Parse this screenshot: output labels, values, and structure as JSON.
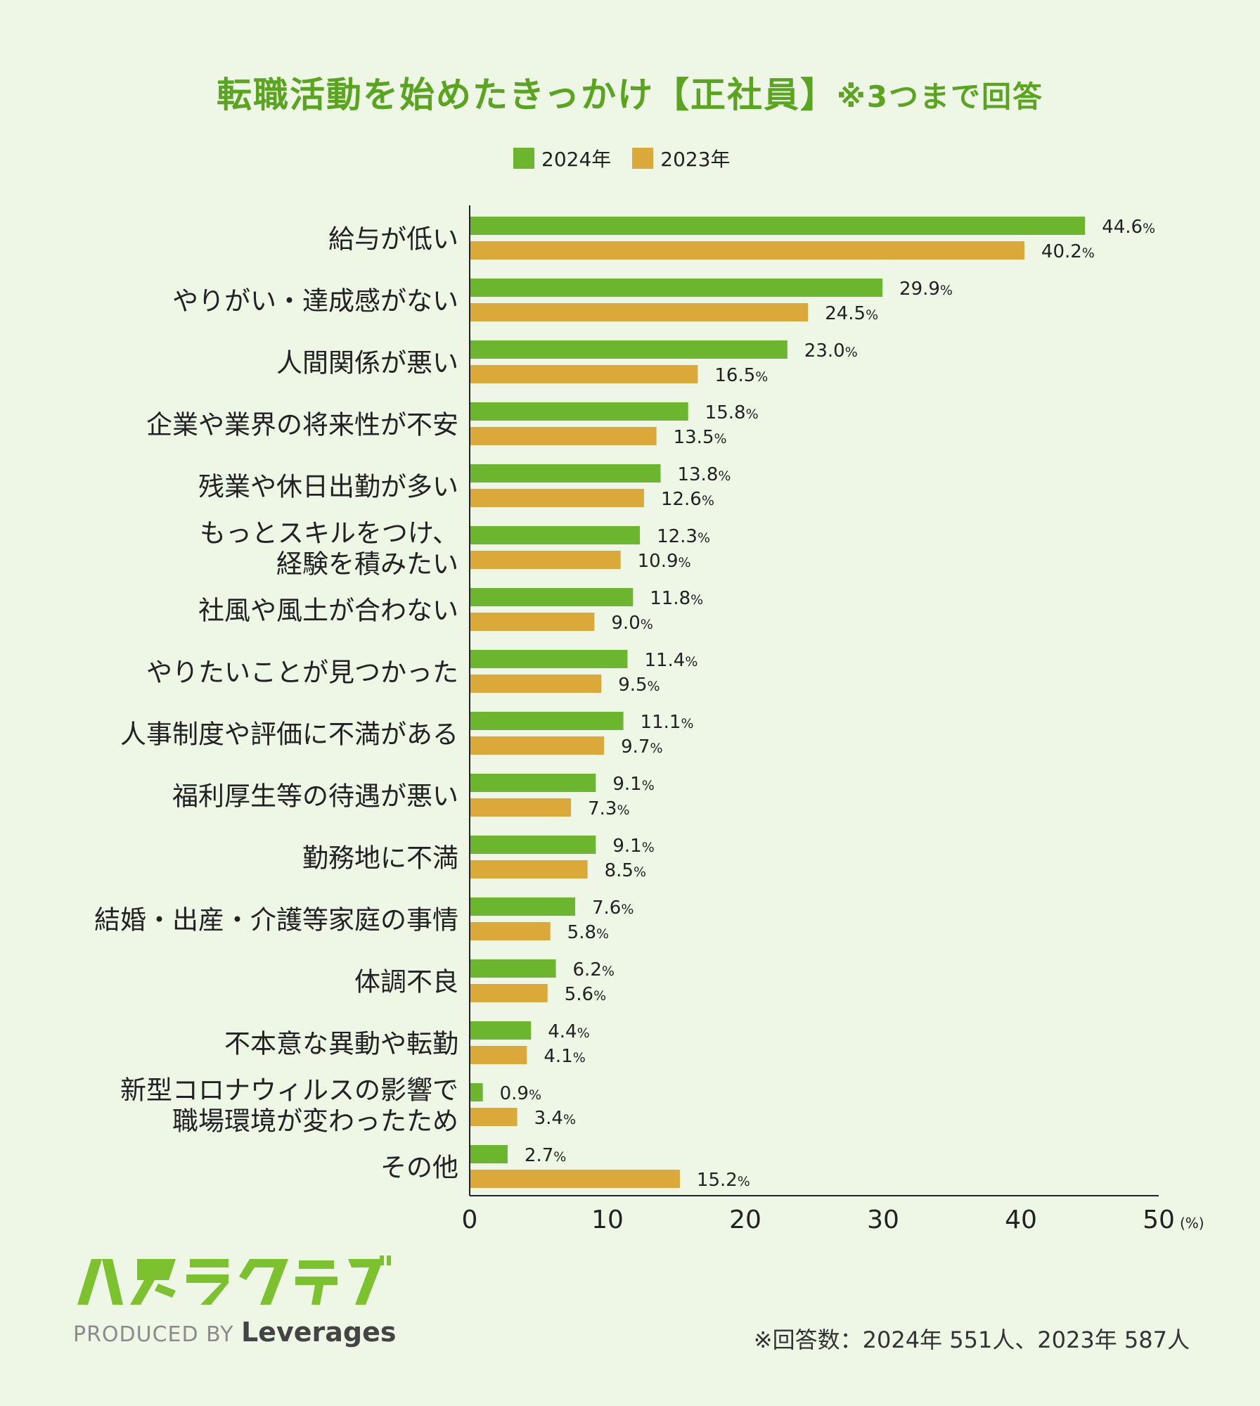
{
  "title": "転職活動を始めたきっかけ【正社員】",
  "subtitle": "※3つまで回答",
  "legend": [
    {
      "label": "2024年",
      "color": "#6cb52e"
    },
    {
      "label": "2023年",
      "color": "#dba93a"
    }
  ],
  "chart_data": {
    "type": "bar",
    "orientation": "horizontal",
    "categories": [
      [
        "給与が低い"
      ],
      [
        "やりがい・達成感がない"
      ],
      [
        "人間関係が悪い"
      ],
      [
        "企業や業界の将来性が不安"
      ],
      [
        "残業や休日出勤が多い"
      ],
      [
        "もっとスキルをつけ、",
        "経験を積みたい"
      ],
      [
        "社風や風土が合わない"
      ],
      [
        "やりたいことが見つかった"
      ],
      [
        "人事制度や評価に不満がある"
      ],
      [
        "福利厚生等の待遇が悪い"
      ],
      [
        "勤務地に不満"
      ],
      [
        "結婚・出産・介護等家庭の事情"
      ],
      [
        "体調不良"
      ],
      [
        "不本意な異動や転勤"
      ],
      [
        "新型コロナウィルスの影響で",
        "職場環境が変わったため"
      ],
      [
        "その他"
      ]
    ],
    "series": [
      {
        "name": "2024年",
        "color": "#6cb52e",
        "values": [
          44.6,
          29.9,
          23.0,
          15.8,
          13.8,
          12.3,
          11.8,
          11.4,
          11.1,
          9.1,
          9.1,
          7.6,
          6.2,
          4.4,
          0.9,
          2.7
        ]
      },
      {
        "name": "2023年",
        "color": "#dba93a",
        "values": [
          40.2,
          24.5,
          16.5,
          13.5,
          12.6,
          10.9,
          9.0,
          9.5,
          9.7,
          7.3,
          8.5,
          5.8,
          5.6,
          4.1,
          3.4,
          15.2
        ]
      }
    ],
    "xlim": [
      0,
      50
    ],
    "xticks": [
      0,
      10,
      20,
      30,
      40,
      50
    ],
    "xunit": "(%)",
    "value_suffix": "%"
  },
  "brand": {
    "logo_text": "ハタラクティブ",
    "produced_prefix": "PRODUCED BY",
    "produced_name": "Leverages"
  },
  "footnote": "※回答数：2024年 551人、2023年 587人"
}
